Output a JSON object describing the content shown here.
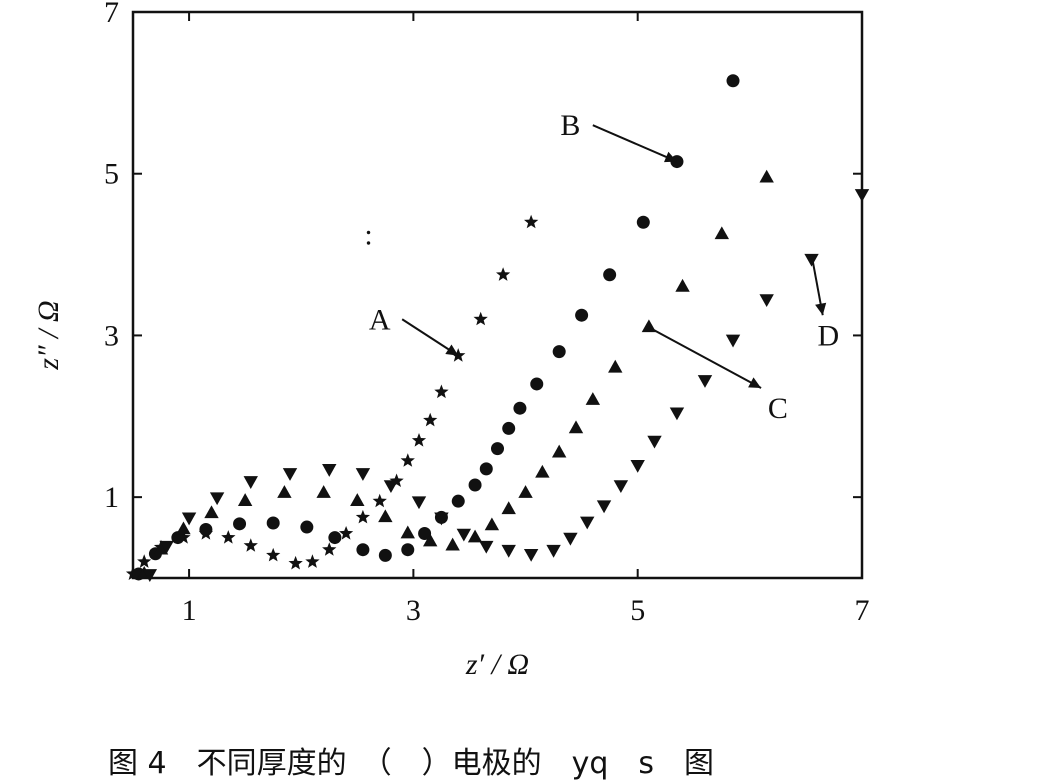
{
  "caption": "图 4　不同厚度的　（　）电极的　yq　s　图",
  "chart_data": {
    "type": "scatter",
    "title": "",
    "xlabel": "z′ / Ω",
    "ylabel": "z″ / Ω",
    "xlim": [
      0,
      7
    ],
    "ylim": [
      0,
      7
    ],
    "xticks": [
      1,
      3,
      5,
      7
    ],
    "yticks": [
      1,
      3,
      5,
      7
    ],
    "grid": false,
    "legend": "none",
    "series": [
      {
        "marker": "star",
        "points": [
          [
            0.5,
            0.05
          ],
          [
            0.6,
            0.2
          ],
          [
            0.75,
            0.38
          ],
          [
            0.95,
            0.5
          ],
          [
            1.15,
            0.55
          ],
          [
            1.35,
            0.5
          ],
          [
            1.55,
            0.4
          ],
          [
            1.75,
            0.28
          ],
          [
            1.95,
            0.18
          ],
          [
            2.1,
            0.2
          ],
          [
            2.25,
            0.35
          ],
          [
            2.4,
            0.55
          ],
          [
            2.55,
            0.75
          ],
          [
            2.7,
            0.95
          ],
          [
            2.85,
            1.2
          ],
          [
            2.95,
            1.45
          ],
          [
            3.05,
            1.7
          ],
          [
            3.15,
            1.95
          ],
          [
            3.25,
            2.3
          ],
          [
            3.4,
            2.75
          ],
          [
            3.6,
            3.2
          ],
          [
            3.8,
            3.75
          ],
          [
            4.05,
            4.4
          ]
        ]
      },
      {
        "marker": "circle",
        "points": [
          [
            0.55,
            0.05
          ],
          [
            0.7,
            0.3
          ],
          [
            0.9,
            0.5
          ],
          [
            1.15,
            0.6
          ],
          [
            1.45,
            0.67
          ],
          [
            1.75,
            0.68
          ],
          [
            2.05,
            0.63
          ],
          [
            2.3,
            0.5
          ],
          [
            2.55,
            0.35
          ],
          [
            2.75,
            0.28
          ],
          [
            2.95,
            0.35
          ],
          [
            3.1,
            0.55
          ],
          [
            3.25,
            0.75
          ],
          [
            3.4,
            0.95
          ],
          [
            3.55,
            1.15
          ],
          [
            3.65,
            1.35
          ],
          [
            3.75,
            1.6
          ],
          [
            3.85,
            1.85
          ],
          [
            3.95,
            2.1
          ],
          [
            4.1,
            2.4
          ],
          [
            4.3,
            2.8
          ],
          [
            4.5,
            3.25
          ],
          [
            4.75,
            3.75
          ],
          [
            5.05,
            4.4
          ],
          [
            5.35,
            5.15
          ],
          [
            5.85,
            6.15
          ]
        ]
      },
      {
        "marker": "triangle-up",
        "points": [
          [
            0.6,
            0.05
          ],
          [
            0.75,
            0.35
          ],
          [
            0.95,
            0.6
          ],
          [
            1.2,
            0.8
          ],
          [
            1.5,
            0.95
          ],
          [
            1.85,
            1.05
          ],
          [
            2.2,
            1.05
          ],
          [
            2.5,
            0.95
          ],
          [
            2.75,
            0.75
          ],
          [
            2.95,
            0.55
          ],
          [
            3.15,
            0.45
          ],
          [
            3.35,
            0.4
          ],
          [
            3.55,
            0.5
          ],
          [
            3.7,
            0.65
          ],
          [
            3.85,
            0.85
          ],
          [
            4.0,
            1.05
          ],
          [
            4.15,
            1.3
          ],
          [
            4.3,
            1.55
          ],
          [
            4.45,
            1.85
          ],
          [
            4.6,
            2.2
          ],
          [
            4.8,
            2.6
          ],
          [
            5.1,
            3.1
          ],
          [
            5.4,
            3.6
          ],
          [
            5.75,
            4.25
          ],
          [
            6.15,
            4.95
          ]
        ]
      },
      {
        "marker": "triangle-down",
        "points": [
          [
            0.65,
            0.05
          ],
          [
            0.8,
            0.4
          ],
          [
            1.0,
            0.75
          ],
          [
            1.25,
            1.0
          ],
          [
            1.55,
            1.2
          ],
          [
            1.9,
            1.3
          ],
          [
            2.25,
            1.35
          ],
          [
            2.55,
            1.3
          ],
          [
            2.8,
            1.15
          ],
          [
            3.05,
            0.95
          ],
          [
            3.25,
            0.75
          ],
          [
            3.45,
            0.55
          ],
          [
            3.65,
            0.4
          ],
          [
            3.85,
            0.35
          ],
          [
            4.05,
            0.3
          ],
          [
            4.25,
            0.35
          ],
          [
            4.4,
            0.5
          ],
          [
            4.55,
            0.7
          ],
          [
            4.7,
            0.9
          ],
          [
            4.85,
            1.15
          ],
          [
            5.0,
            1.4
          ],
          [
            5.15,
            1.7
          ],
          [
            5.35,
            2.05
          ],
          [
            5.6,
            2.45
          ],
          [
            5.85,
            2.95
          ],
          [
            6.15,
            3.45
          ],
          [
            6.55,
            3.95
          ],
          [
            7.0,
            4.75
          ]
        ]
      }
    ],
    "annotations": [
      {
        "text": "A",
        "label_at": [
          2.7,
          3.2
        ],
        "arrow_from": [
          2.9,
          3.2
        ],
        "arrow_to": [
          3.4,
          2.75
        ]
      },
      {
        "text": "B",
        "label_at": [
          4.4,
          5.6
        ],
        "arrow_from": [
          4.6,
          5.6
        ],
        "arrow_to": [
          5.35,
          5.15
        ]
      },
      {
        "text": "C",
        "label_at": [
          6.25,
          2.1
        ],
        "arrow_from": [
          5.1,
          3.1
        ],
        "arrow_to": [
          6.1,
          2.35
        ]
      },
      {
        "text": "D",
        "label_at": [
          6.7,
          3.0
        ],
        "arrow_from": [
          6.55,
          4.0
        ],
        "arrow_to": [
          6.65,
          3.25
        ]
      },
      {
        "text": ":",
        "label_at": [
          2.6,
          4.25
        ]
      }
    ]
  }
}
